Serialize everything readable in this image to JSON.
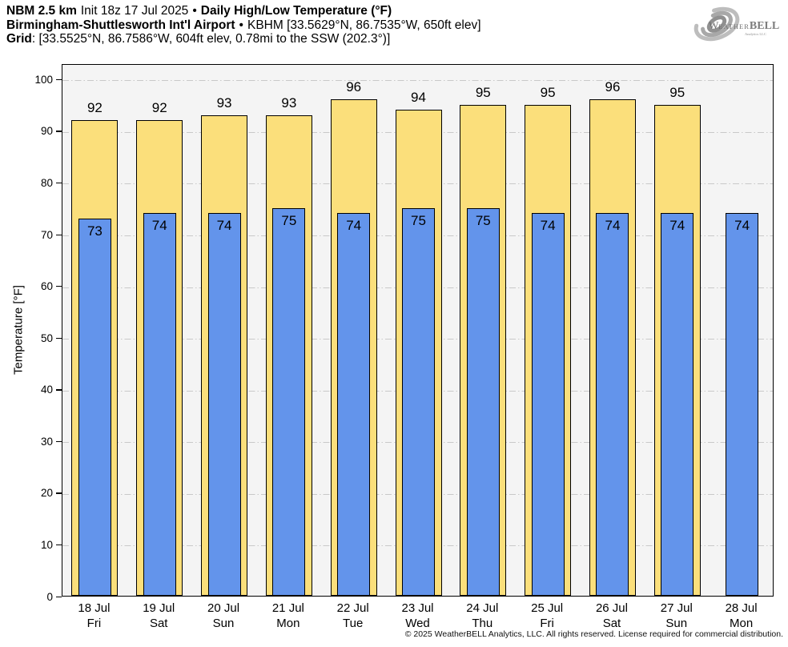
{
  "header": {
    "model": "NBM 2.5 km",
    "init": "Init 18z 17 Jul 2025",
    "sep": "•",
    "product": "Daily High/Low Temperature (°F)",
    "station_name": "Birmingham-Shuttlesworth Int'l Airport",
    "station_info": "KBHM [33.5629°N, 86.7535°W, 650ft elev]",
    "grid_label": "Grid",
    "grid_info": ": [33.5525°N, 86.7586°W, 604ft elev, 0.78mi to the SSW (202.3°)]"
  },
  "logo": {
    "initial": "W",
    "rest": "EATHER",
    "bold": "BELL",
    "subtitle": "Analytics LLC"
  },
  "footer": {
    "copyright": "© 2025 WeatherBELL Analytics, LLC. All rights reserved. License required for commercial distribution."
  },
  "colors": {
    "plot_bg": "#f4f4f4",
    "grid": "#c9c9c9",
    "bar_border": "#000000",
    "high_bar": "#fbdf7b",
    "low_bar": "#6394eb"
  },
  "chart_data": {
    "type": "bar",
    "title": "Daily High/Low Temperature (°F)",
    "xlabel": "",
    "ylabel": "Temperature [°F]",
    "ylim": [
      0,
      103
    ],
    "yticks": [
      0,
      10,
      20,
      30,
      40,
      50,
      60,
      70,
      80,
      90,
      100
    ],
    "grid": "horizontal dash-dot at each 10°F, behind bars",
    "legend": "none",
    "days": [
      {
        "date": "18 Jul",
        "weekday": "Fri"
      },
      {
        "date": "19 Jul",
        "weekday": "Sat"
      },
      {
        "date": "20 Jul",
        "weekday": "Sun"
      },
      {
        "date": "21 Jul",
        "weekday": "Mon"
      },
      {
        "date": "22 Jul",
        "weekday": "Tue"
      },
      {
        "date": "23 Jul",
        "weekday": "Wed"
      },
      {
        "date": "24 Jul",
        "weekday": "Thu"
      },
      {
        "date": "25 Jul",
        "weekday": "Fri"
      },
      {
        "date": "26 Jul",
        "weekday": "Sat"
      },
      {
        "date": "27 Jul",
        "weekday": "Sun"
      },
      {
        "date": "28 Jul",
        "weekday": "Mon"
      }
    ],
    "series": [
      {
        "name": "Daily High",
        "color": "#fbdf7b",
        "values": [
          92,
          92,
          93,
          93,
          96,
          94,
          95,
          95,
          96,
          95,
          null
        ]
      },
      {
        "name": "Daily Low",
        "color": "#6394eb",
        "values": [
          73,
          74,
          74,
          75,
          74,
          75,
          75,
          74,
          74,
          74,
          74
        ]
      }
    ]
  }
}
